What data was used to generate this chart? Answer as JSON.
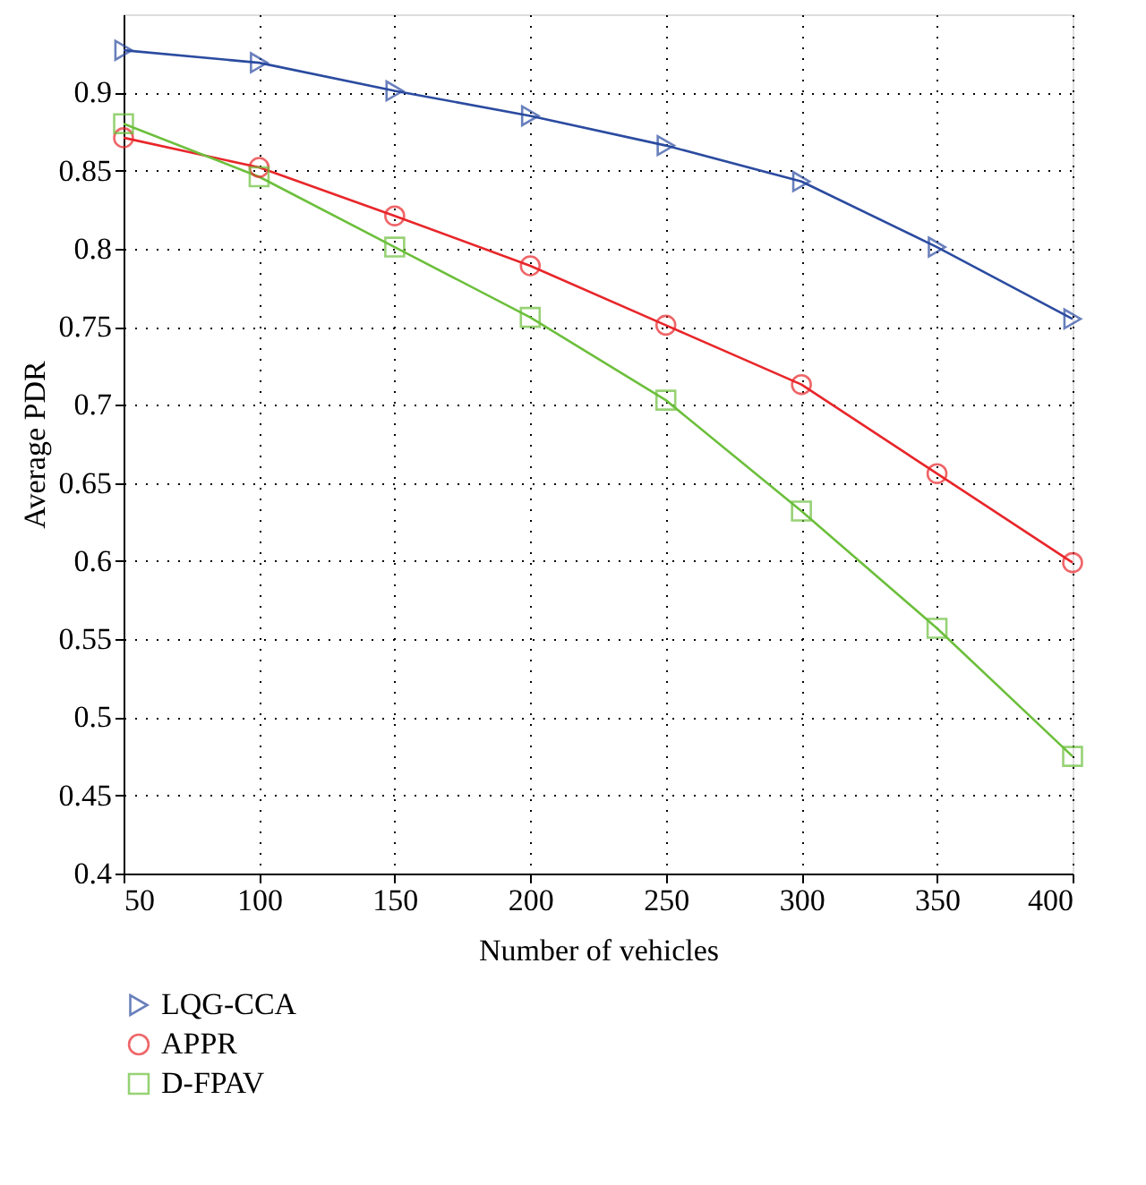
{
  "chart_data": {
    "type": "line",
    "xlabel": "Number of vehicles",
    "ylabel": "Average PDR",
    "x": [
      50,
      100,
      150,
      200,
      250,
      300,
      350,
      400
    ],
    "series": [
      {
        "name": "LQG-CCA",
        "color": "#2b4ba0",
        "marker": "triangle",
        "values": [
          0.927,
          0.919,
          0.901,
          0.885,
          0.866,
          0.843,
          0.801,
          0.755
        ]
      },
      {
        "name": "APPR",
        "color": "#e8262a",
        "marker": "circle",
        "values": [
          0.871,
          0.852,
          0.821,
          0.789,
          0.751,
          0.713,
          0.656,
          0.599
        ]
      },
      {
        "name": "D-FPAV",
        "color": "#6cbf3c",
        "marker": "square",
        "values": [
          0.88,
          0.846,
          0.801,
          0.756,
          0.703,
          0.632,
          0.557,
          0.475
        ]
      }
    ],
    "xlim": [
      50,
      400
    ],
    "xticks": [
      50,
      100,
      150,
      200,
      250,
      300,
      350,
      400
    ],
    "ylim": [
      0.4,
      0.95
    ],
    "yticks": [
      0.4,
      0.45,
      0.5,
      0.55,
      0.6,
      0.65,
      0.7,
      0.75,
      0.8,
      0.85,
      0.9
    ],
    "grid": true,
    "legend": "bottom",
    "line_style": "solid"
  }
}
